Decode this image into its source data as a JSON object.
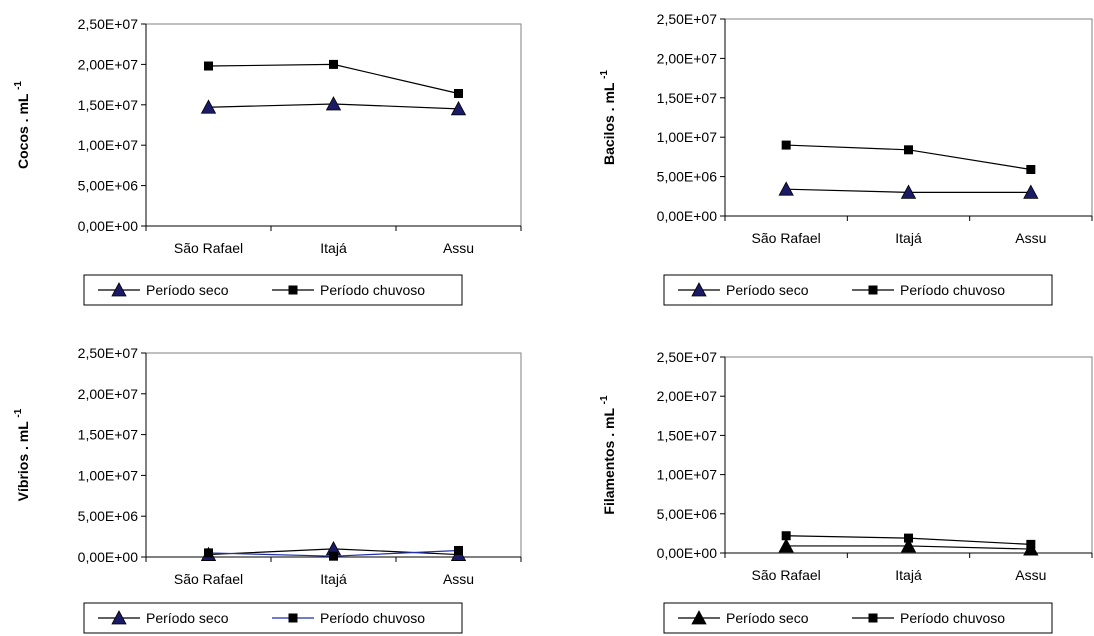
{
  "chart_data": [
    {
      "type": "line",
      "title": "",
      "ylabel": "Cocos . mL",
      "ylabel_superscript": "-1",
      "categories": [
        "São Rafael",
        "Itajá",
        "Assu"
      ],
      "ylim": [
        0,
        25000000
      ],
      "yticks": [
        "0,00E+00",
        "5,00E+06",
        "1,00E+07",
        "1,50E+07",
        "2,00E+07",
        "2,50E+07"
      ],
      "series": [
        {
          "name": "Período seco",
          "values": [
            14700000,
            15100000,
            14500000
          ],
          "marker": "triangle",
          "marker_color": "#1a1a66",
          "line_color": "#000000"
        },
        {
          "name": "Período chuvoso",
          "values": [
            19800000,
            20000000,
            16400000
          ],
          "marker": "square",
          "marker_color": "#000000",
          "line_color": "#000000"
        }
      ],
      "grid": false,
      "legend": "bottom"
    },
    {
      "type": "line",
      "title": "",
      "ylabel": "Bacilos . mL",
      "ylabel_superscript": "-1",
      "categories": [
        "São Rafael",
        "Itajá",
        "Assu"
      ],
      "ylim": [
        0,
        25000000
      ],
      "yticks": [
        "0,00E+00",
        "5,00E+06",
        "1,00E+07",
        "1,50E+07",
        "2,00E+07",
        "2,50E+07"
      ],
      "series": [
        {
          "name": "Período seco",
          "values": [
            3400000,
            3000000,
            3000000
          ],
          "marker": "triangle",
          "marker_color": "#1a1a66",
          "line_color": "#000000"
        },
        {
          "name": "Período chuvoso",
          "values": [
            9000000,
            8400000,
            5900000
          ],
          "marker": "square",
          "marker_color": "#000000",
          "line_color": "#000000"
        }
      ],
      "grid": false,
      "legend": "bottom"
    },
    {
      "type": "line",
      "title": "",
      "ylabel": "Víbrios . mL",
      "ylabel_superscript": "-1",
      "categories": [
        "São Rafael",
        "Itajá",
        "Assu"
      ],
      "ylim": [
        0,
        25000000
      ],
      "yticks": [
        "0,00E+00",
        "5,00E+06",
        "1,00E+07",
        "1,50E+07",
        "2,00E+07",
        "2,50E+07"
      ],
      "series": [
        {
          "name": "Período seco",
          "values": [
            300000,
            1000000,
            300000
          ],
          "marker": "triangle",
          "marker_color": "#1a1a66",
          "line_color": "#000000"
        },
        {
          "name": "Período chuvoso",
          "values": [
            500000,
            100000,
            800000
          ],
          "marker": "square",
          "marker_color": "#000000",
          "line_color": "#1f2fb0"
        }
      ],
      "grid": false,
      "legend": "bottom"
    },
    {
      "type": "line",
      "title": "",
      "ylabel": "Filamentos . mL",
      "ylabel_superscript": "-1",
      "categories": [
        "São Rafael",
        "Itajá",
        "Assu"
      ],
      "ylim": [
        0,
        25000000
      ],
      "yticks": [
        "0,00E+00",
        "5,00E+06",
        "1,00E+07",
        "1,50E+07",
        "2,00E+07",
        "2,50E+07"
      ],
      "series": [
        {
          "name": "Período seco",
          "values": [
            900000,
            900000,
            500000
          ],
          "marker": "triangle",
          "marker_color": "#000000",
          "line_color": "#000000"
        },
        {
          "name": "Período chuvoso",
          "values": [
            2200000,
            1900000,
            1100000
          ],
          "marker": "square",
          "marker_color": "#000000",
          "line_color": "#000000"
        }
      ],
      "grid": false,
      "legend": "bottom"
    }
  ]
}
